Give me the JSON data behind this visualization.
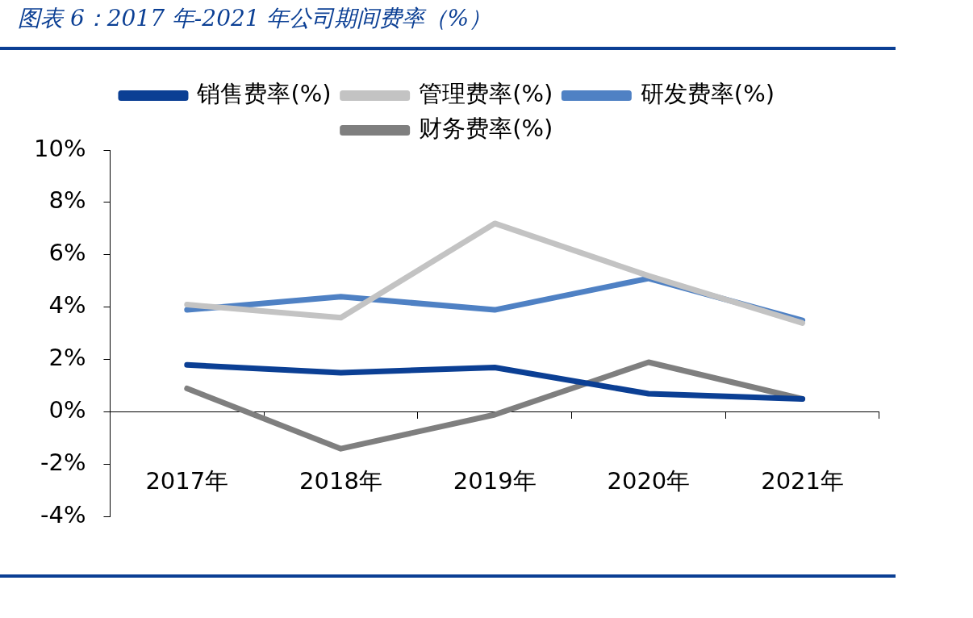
{
  "chart_data": {
    "type": "line",
    "title": "图表 6：2017 年-2021 年公司期间费率（%）",
    "categories": [
      "2017年",
      "2018年",
      "2019年",
      "2020年",
      "2021年"
    ],
    "series": [
      {
        "name": "销售费率(%)",
        "color": "#0b3f94",
        "values": [
          1.8,
          1.5,
          1.7,
          0.7,
          0.5
        ]
      },
      {
        "name": "管理费率(%)",
        "color": "#c3c3c3",
        "values": [
          4.1,
          3.6,
          7.2,
          5.2,
          3.4
        ]
      },
      {
        "name": "研发费率(%)",
        "color": "#4f81c4",
        "values": [
          3.9,
          4.4,
          3.9,
          5.1,
          3.5
        ]
      },
      {
        "name": "财务费率(%)",
        "color": "#7f7f7f",
        "values": [
          0.9,
          -1.4,
          -0.1,
          1.9,
          0.5
        ]
      }
    ],
    "ylim": [
      -4,
      10
    ],
    "yticks": [
      {
        "value": -4,
        "label": "-4%"
      },
      {
        "value": -2,
        "label": "-2%"
      },
      {
        "value": 0,
        "label": "0%"
      },
      {
        "value": 2,
        "label": "2%"
      },
      {
        "value": 4,
        "label": "4%"
      },
      {
        "value": 6,
        "label": "6%"
      },
      {
        "value": 8,
        "label": "8%"
      },
      {
        "value": 10,
        "label": "10%"
      }
    ],
    "grid": false,
    "legend": "top",
    "marker": "none",
    "line_style": "solid"
  }
}
